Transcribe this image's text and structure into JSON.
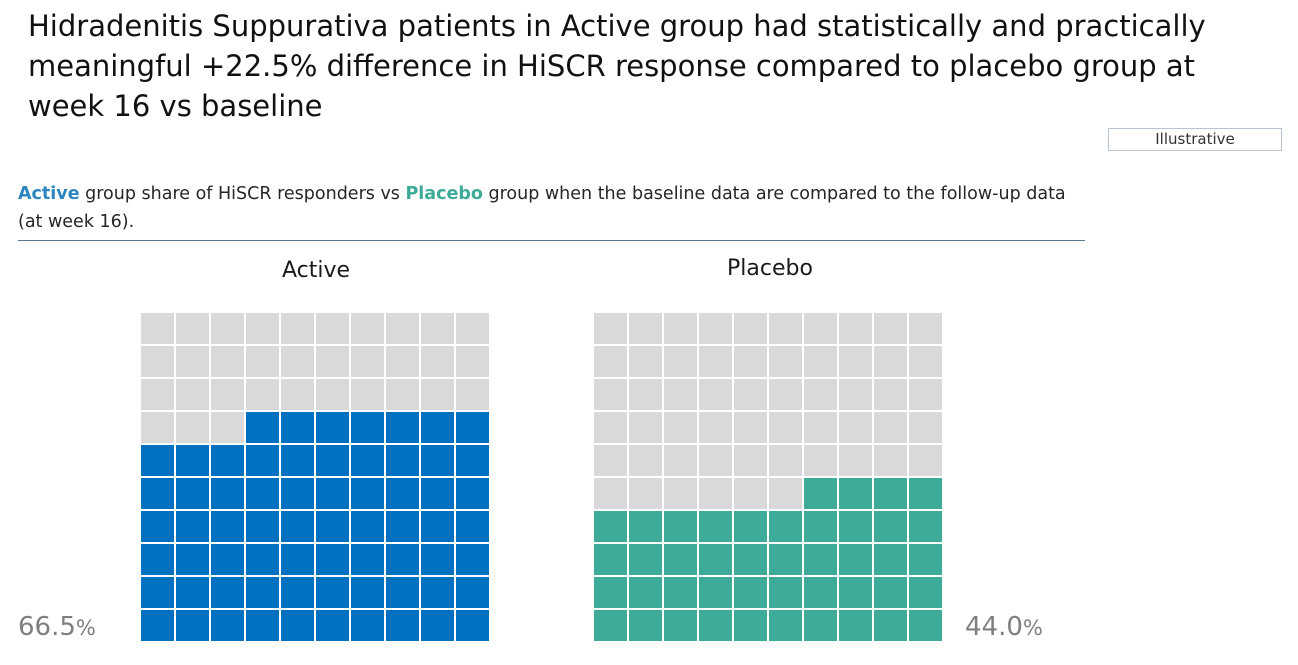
{
  "title": "Hidradenitis Suppurativa patients in Active group had statistically and practically meaningful +22.5% difference in HiSCR response compared to placebo group at week 16 vs baseline",
  "badge": "Illustrative",
  "subtitle": {
    "active_word": "Active",
    "text_1": " group share of HiSCR responders vs ",
    "placebo_word": "Placebo",
    "text_2": " group when the baseline data are compared to the follow-up data (at week 16)."
  },
  "colors": {
    "active": "#0070c0",
    "placebo": "#3eab98",
    "empty": "#d9d9db",
    "active_text": "#2e86c1",
    "placebo_text": "#3eab98"
  },
  "chart_data": {
    "type": "waffle",
    "grid": {
      "rows": 10,
      "cols": 10
    },
    "series": [
      {
        "name": "Active",
        "value": 66.5,
        "value_label": "66.5",
        "unit": "%"
      },
      {
        "name": "Placebo",
        "value": 44.0,
        "value_label": "44.0",
        "unit": "%"
      }
    ]
  }
}
